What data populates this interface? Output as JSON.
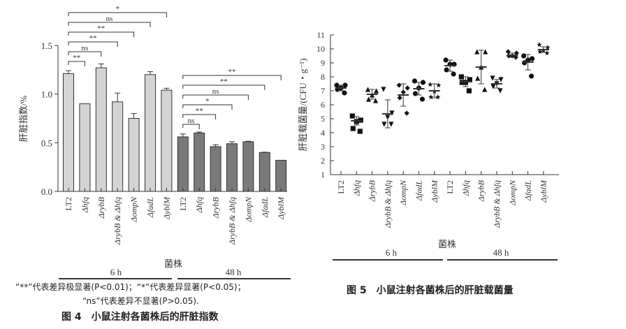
{
  "chart_data": [
    {
      "type": "bar",
      "ylabel": "肝脏指数/%",
      "xlabel": "菌株",
      "ylim": [
        0,
        1.5
      ],
      "yticks": [
        "0.0",
        "0.5",
        "1.0",
        "1.5"
      ],
      "groups": [
        "6 h",
        "48 h"
      ],
      "categories": [
        "LT2",
        "Δhfq",
        "ΔrybB",
        "ΔrybB & Δhfq",
        "ΔompN",
        "ΔfadL",
        "ΔyblM"
      ],
      "series": [
        {
          "group": "6 h",
          "color": "#d4d4d4",
          "values": [
            1.21,
            0.9,
            1.27,
            0.92,
            0.75,
            1.2,
            1.04
          ],
          "errors": [
            0.03,
            0,
            0.04,
            0.09,
            0.05,
            0.03,
            0.02
          ]
        },
        {
          "group": "48 h",
          "color": "#7a7a7a",
          "values": [
            0.56,
            0.6,
            0.46,
            0.49,
            0.51,
            0.4,
            0.32
          ],
          "errors": [
            0.03,
            0.01,
            0.02,
            0.02,
            0.005,
            0.003,
            0
          ]
        }
      ],
      "significance": [
        {
          "group": "6 h",
          "marks": [
            "**",
            "ns",
            "**",
            "**",
            "ns",
            "*"
          ]
        },
        {
          "group": "48 h",
          "marks": [
            "ns",
            "**",
            "*",
            "ns",
            "**",
            "**"
          ]
        }
      ],
      "notes": [
        "“**”代表差异极显著(P<0.01)；“*”代表差异显著(P<0.05)；",
        "“ns”代表差异不显著(P>0.05)."
      ],
      "caption": "图 4　小鼠注射各菌株后的肝脏指数"
    },
    {
      "type": "scatter",
      "ylabel": "肝脏载菌量/(CFU・g⁻¹)",
      "xlabel": "菌株",
      "ylim": [
        1,
        11
      ],
      "yticks": [
        "1",
        "2",
        "3",
        "4",
        "5",
        "6",
        "7",
        "8",
        "9",
        "10",
        "11"
      ],
      "groups": [
        "6 h",
        "48 h"
      ],
      "categories": [
        "LT2",
        "Δhfq",
        "ΔrybB",
        "ΔrybB & Δhfq",
        "ΔompN",
        "ΔfadL",
        "ΔyblM"
      ],
      "series": [
        {
          "group": "6 h",
          "markers": [
            "circle",
            "square",
            "triangle-up",
            "triangle-down",
            "diamond",
            "circle",
            "star"
          ],
          "points": [
            [
              7.4,
              7.4,
              7.2,
              7.1,
              6.85
            ],
            [
              5.2,
              4.9,
              4.8,
              4.3,
              4.1
            ],
            [
              7.1,
              7.0,
              6.7,
              6.4,
              6.3
            ],
            [
              7.1,
              5.4,
              5.1,
              4.6,
              4.6
            ],
            [
              7.4,
              7.2,
              6.9,
              6.5,
              5.4
            ],
            [
              7.7,
              7.6,
              7.2,
              6.8,
              6.4
            ],
            [
              7.45,
              7.4,
              6.95,
              6.55,
              6.55
            ]
          ],
          "mean": [
            7.2,
            4.85,
            6.75,
            5.35,
            6.7,
            7.15,
            7.0
          ],
          "sd": [
            0.2,
            0.3,
            0.35,
            1.0,
            0.8,
            0.45,
            0.5
          ]
        },
        {
          "group": "48 h",
          "markers": [
            "circle",
            "square",
            "triangle-up",
            "triangle-down",
            "diamond",
            "circle",
            "star"
          ],
          "points": [
            [
              9.2,
              8.9,
              8.9,
              8.5,
              8.2
            ],
            [
              8.0,
              7.8,
              7.6,
              7.6,
              7.0
            ],
            [
              9.8,
              9.8,
              8.7,
              7.9,
              7.1
            ],
            [
              7.9,
              7.8,
              7.5,
              7.3,
              7.0
            ],
            [
              9.8,
              9.7,
              9.5,
              9.5,
              9.4
            ],
            [
              9.5,
              9.3,
              9.2,
              9.0,
              8.05
            ],
            [
              10.3,
              10.1,
              9.9,
              9.8,
              9.7
            ]
          ],
          "mean": [
            8.8,
            7.65,
            8.7,
            7.5,
            9.55,
            9.05,
            9.95
          ],
          "sd": [
            0.4,
            0.35,
            1.2,
            0.3,
            0.15,
            0.55,
            0.2
          ]
        }
      ],
      "caption": "图 5　小鼠注射各菌株后的肝脏载菌量"
    }
  ]
}
